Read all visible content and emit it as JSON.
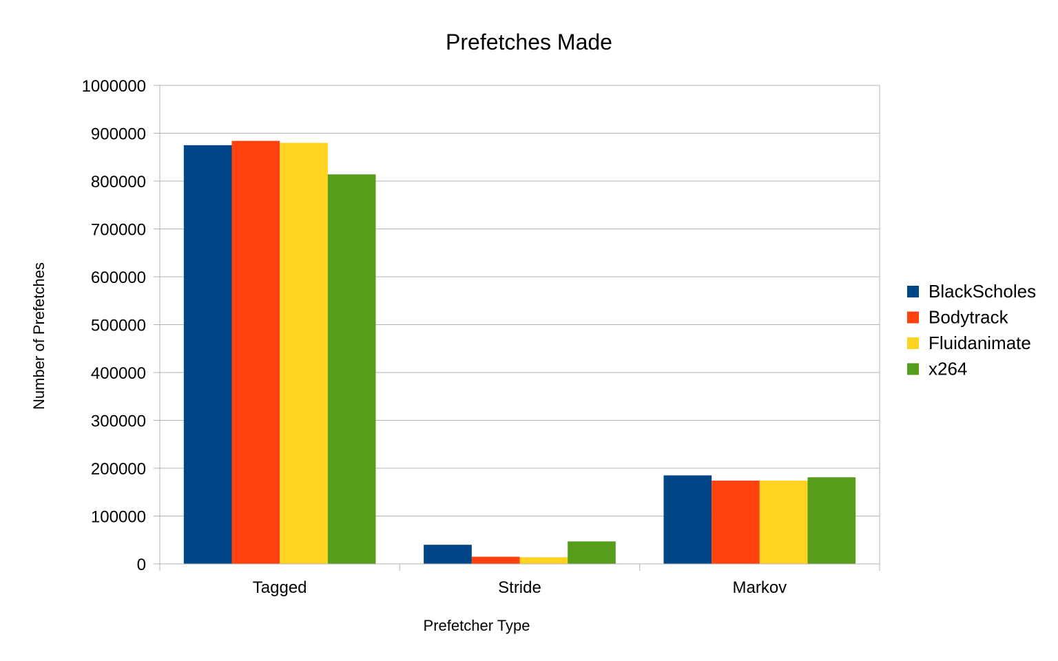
{
  "chart_data": {
    "type": "bar",
    "title": "Prefetches Made",
    "xlabel": "Prefetcher Type",
    "ylabel": "Number of Prefetches",
    "categories": [
      "Tagged",
      "Stride",
      "Markov"
    ],
    "series": [
      {
        "name": "BlackScholes",
        "color": "#004586",
        "values": [
          875000,
          40000,
          185000
        ]
      },
      {
        "name": "Bodytrack",
        "color": "#ff420e",
        "values": [
          884000,
          15000,
          174000
        ]
      },
      {
        "name": "Fluidanimate",
        "color": "#ffd320",
        "values": [
          880000,
          14000,
          174000
        ]
      },
      {
        "name": "x264",
        "color": "#579d1c",
        "values": [
          814000,
          47000,
          181000
        ]
      }
    ],
    "ylim": [
      0,
      1000000
    ],
    "yticks": [
      "0",
      "100000",
      "200000",
      "300000",
      "400000",
      "500000",
      "600000",
      "700000",
      "800000",
      "900000",
      "1000000"
    ],
    "grid": true,
    "legend": "right"
  }
}
